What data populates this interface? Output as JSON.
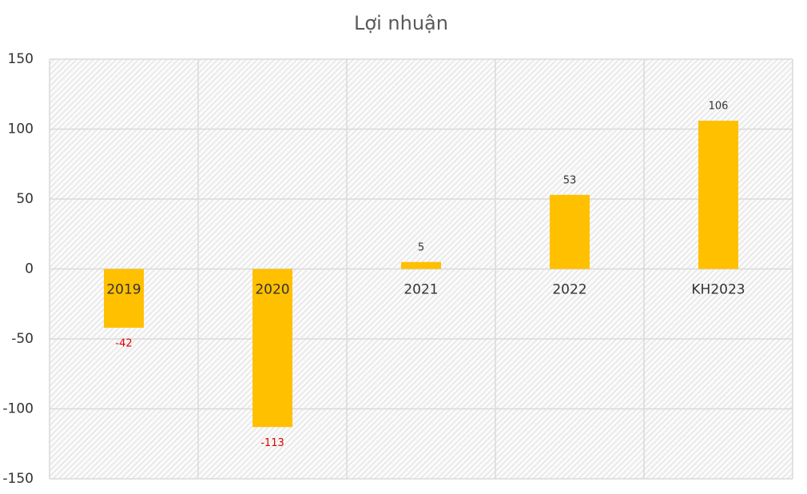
{
  "chart_data": {
    "type": "bar",
    "title": "Lợi nhuận",
    "categories": [
      "2019",
      "2020",
      "2021",
      "2022",
      "KH2023"
    ],
    "values": [
      -42,
      -113,
      5,
      53,
      106
    ],
    "color": "#FFC000",
    "negative_label_color": "#e00000",
    "label_color": "#333333",
    "ylim": [
      -150,
      150
    ],
    "yticks": [
      -150,
      -100,
      -50,
      0,
      50,
      100,
      150
    ],
    "grid": true
  }
}
